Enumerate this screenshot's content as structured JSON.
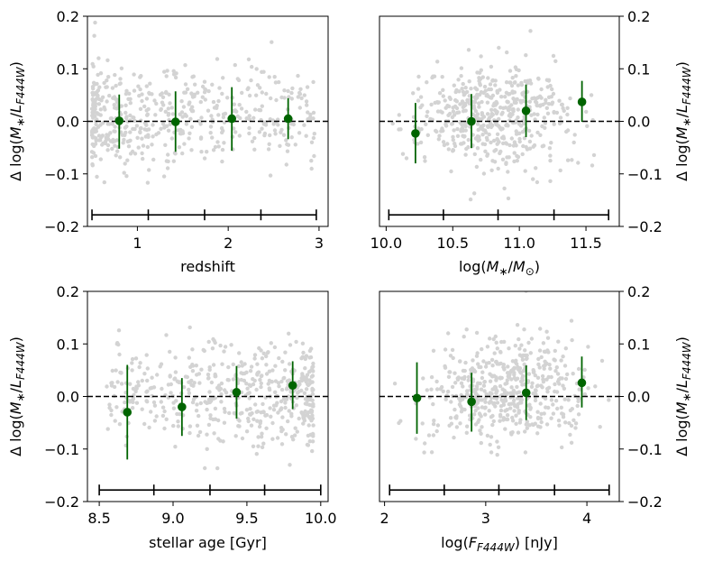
{
  "chart_data": [
    {
      "type": "scatter",
      "id": "redshift",
      "xlabel": "redshift",
      "ylabel": "Δ log(M*/L_F444W)",
      "ylabel_parts": {
        "prefix": "Δ log(",
        "M": "M",
        "star": "∗",
        "slash": "/",
        "L": "L",
        "sub": "F444W",
        "close": ")"
      },
      "xlim": [
        0.45,
        3.1
      ],
      "ylim": [
        -0.2,
        0.2
      ],
      "xticks": [
        1,
        2,
        3
      ],
      "xtick_labels": [
        "1",
        "2",
        "3"
      ],
      "yticks": [
        -0.2,
        -0.1,
        0.0,
        0.1,
        0.2
      ],
      "ytick_labels": [
        "−0.2",
        "−0.1",
        "0.0",
        "0.1",
        "0.2"
      ],
      "yaxis_side": "left",
      "reference_line": 0.0,
      "bin_edges": [
        0.5,
        1.12,
        1.74,
        2.36,
        2.97
      ],
      "bin_bar_y": -0.178,
      "binned_points": [
        {
          "x": 0.8,
          "y": 0.001,
          "yerr_low": 0.053,
          "yerr_high": 0.05
        },
        {
          "x": 1.42,
          "y": -0.001,
          "yerr_low": 0.057,
          "yerr_high": 0.058
        },
        {
          "x": 2.04,
          "y": 0.005,
          "yerr_low": 0.061,
          "yerr_high": 0.06
        },
        {
          "x": 2.66,
          "y": 0.005,
          "yerr_low": 0.039,
          "yerr_high": 0.039
        }
      ],
      "scatter_range": {
        "x": [
          0.5,
          2.95
        ],
        "y_center": 0.01,
        "y_spread": 0.05,
        "n": 520,
        "seed": 11,
        "xdist": "left"
      },
      "point_color": "#d3d3d3",
      "marker_color": "#006400"
    },
    {
      "type": "scatter",
      "id": "mass",
      "xlabel": "log(M*/M⊙)",
      "xlabel_parts": {
        "prefix": "log(",
        "M": "M",
        "star": "∗",
        "slash": "/",
        "M2": "M",
        "sun": "⊙",
        "close": ")"
      },
      "ylabel": "Δ log(M*/L_F444W)",
      "ylabel_parts": {
        "prefix": "Δ log(",
        "M": "M",
        "star": "∗",
        "slash": "/",
        "L": "L",
        "sub": "F444W",
        "close": ")"
      },
      "xlim": [
        9.95,
        11.75
      ],
      "ylim": [
        -0.2,
        0.2
      ],
      "xticks": [
        10.0,
        10.5,
        11.0,
        11.5
      ],
      "xtick_labels": [
        "10.0",
        "10.5",
        "11.0",
        "11.5"
      ],
      "yticks": [
        -0.2,
        -0.1,
        0.0,
        0.1,
        0.2
      ],
      "ytick_labels": [
        "−0.2",
        "−0.1",
        "0.0",
        "0.1",
        "0.2"
      ],
      "yaxis_side": "right",
      "reference_line": 0.0,
      "bin_edges": [
        10.02,
        10.43,
        10.84,
        11.26,
        11.67
      ],
      "bin_bar_y": -0.178,
      "binned_points": [
        {
          "x": 10.22,
          "y": -0.023,
          "yerr_low": 0.057,
          "yerr_high": 0.058
        },
        {
          "x": 10.64,
          "y": 0.0,
          "yerr_low": 0.051,
          "yerr_high": 0.052
        },
        {
          "x": 11.05,
          "y": 0.02,
          "yerr_low": 0.05,
          "yerr_high": 0.05
        },
        {
          "x": 11.47,
          "y": 0.037,
          "yerr_low": 0.038,
          "yerr_high": 0.04
        }
      ],
      "scatter_range": {
        "x": [
          10.02,
          11.6
        ],
        "y_center": 0.01,
        "y_spread": 0.05,
        "n": 520,
        "seed": 23,
        "xdist": "mid"
      },
      "point_color": "#d3d3d3",
      "marker_color": "#006400"
    },
    {
      "type": "scatter",
      "id": "age",
      "xlabel": "stellar age [Gyr]",
      "ylabel": "Δ log(M*/L_F444W)",
      "ylabel_parts": {
        "prefix": "Δ log(",
        "M": "M",
        "star": "∗",
        "slash": "/",
        "L": "L",
        "sub": "F444W",
        "close": ")"
      },
      "xlim": [
        8.42,
        10.05
      ],
      "ylim": [
        -0.2,
        0.2
      ],
      "xticks": [
        8.5,
        9.0,
        9.5,
        10.0
      ],
      "xtick_labels": [
        "8.5",
        "9.0",
        "9.5",
        "10.0"
      ],
      "yticks": [
        -0.2,
        -0.1,
        0.0,
        0.1,
        0.2
      ],
      "ytick_labels": [
        "−0.2",
        "−0.1",
        "0.0",
        "0.1",
        "0.2"
      ],
      "yaxis_side": "left",
      "reference_line": 0.0,
      "bin_edges": [
        8.5,
        8.87,
        9.25,
        9.62,
        10.0
      ],
      "bin_bar_y": -0.178,
      "binned_points": [
        {
          "x": 8.69,
          "y": -0.03,
          "yerr_low": 0.09,
          "yerr_high": 0.09
        },
        {
          "x": 9.06,
          "y": -0.02,
          "yerr_low": 0.055,
          "yerr_high": 0.055
        },
        {
          "x": 9.43,
          "y": 0.008,
          "yerr_low": 0.05,
          "yerr_high": 0.05
        },
        {
          "x": 9.81,
          "y": 0.021,
          "yerr_low": 0.045,
          "yerr_high": 0.046
        }
      ],
      "scatter_range": {
        "x": [
          8.55,
          9.95
        ],
        "y_center": 0.01,
        "y_spread": 0.05,
        "n": 520,
        "seed": 37,
        "xdist": "right"
      },
      "point_color": "#d3d3d3",
      "marker_color": "#006400"
    },
    {
      "type": "scatter",
      "id": "flux",
      "xlabel": "log(F_F444W) [nJy]",
      "xlabel_parts": {
        "prefix": "log(",
        "F": "F",
        "sub": "F444W",
        "close": ") [nJy]"
      },
      "ylabel": "Δ log(M*/L_F444W)",
      "ylabel_parts": {
        "prefix": "Δ log(",
        "M": "M",
        "star": "∗",
        "slash": "/",
        "L": "L",
        "sub": "F444W",
        "close": ")"
      },
      "xlim": [
        1.95,
        4.32
      ],
      "ylim": [
        -0.2,
        0.2
      ],
      "xticks": [
        2,
        3,
        4
      ],
      "xtick_labels": [
        "2",
        "3",
        "4"
      ],
      "yticks": [
        -0.2,
        -0.1,
        0.0,
        0.1,
        0.2
      ],
      "ytick_labels": [
        "−0.2",
        "−0.1",
        "0.0",
        "0.1",
        "0.2"
      ],
      "yaxis_side": "right",
      "reference_line": 0.0,
      "bin_edges": [
        2.05,
        2.59,
        3.13,
        3.68,
        4.22
      ],
      "bin_bar_y": -0.178,
      "binned_points": [
        {
          "x": 2.32,
          "y": -0.003,
          "yerr_low": 0.068,
          "yerr_high": 0.068
        },
        {
          "x": 2.86,
          "y": -0.01,
          "yerr_low": 0.057,
          "yerr_high": 0.055
        },
        {
          "x": 3.4,
          "y": 0.007,
          "yerr_low": 0.052,
          "yerr_high": 0.052
        },
        {
          "x": 3.95,
          "y": 0.026,
          "yerr_low": 0.047,
          "yerr_high": 0.05
        }
      ],
      "scatter_range": {
        "x": [
          2.1,
          4.25
        ],
        "y_center": 0.01,
        "y_spread": 0.05,
        "n": 520,
        "seed": 51,
        "xdist": "mid"
      },
      "point_color": "#d3d3d3",
      "marker_color": "#006400"
    }
  ]
}
